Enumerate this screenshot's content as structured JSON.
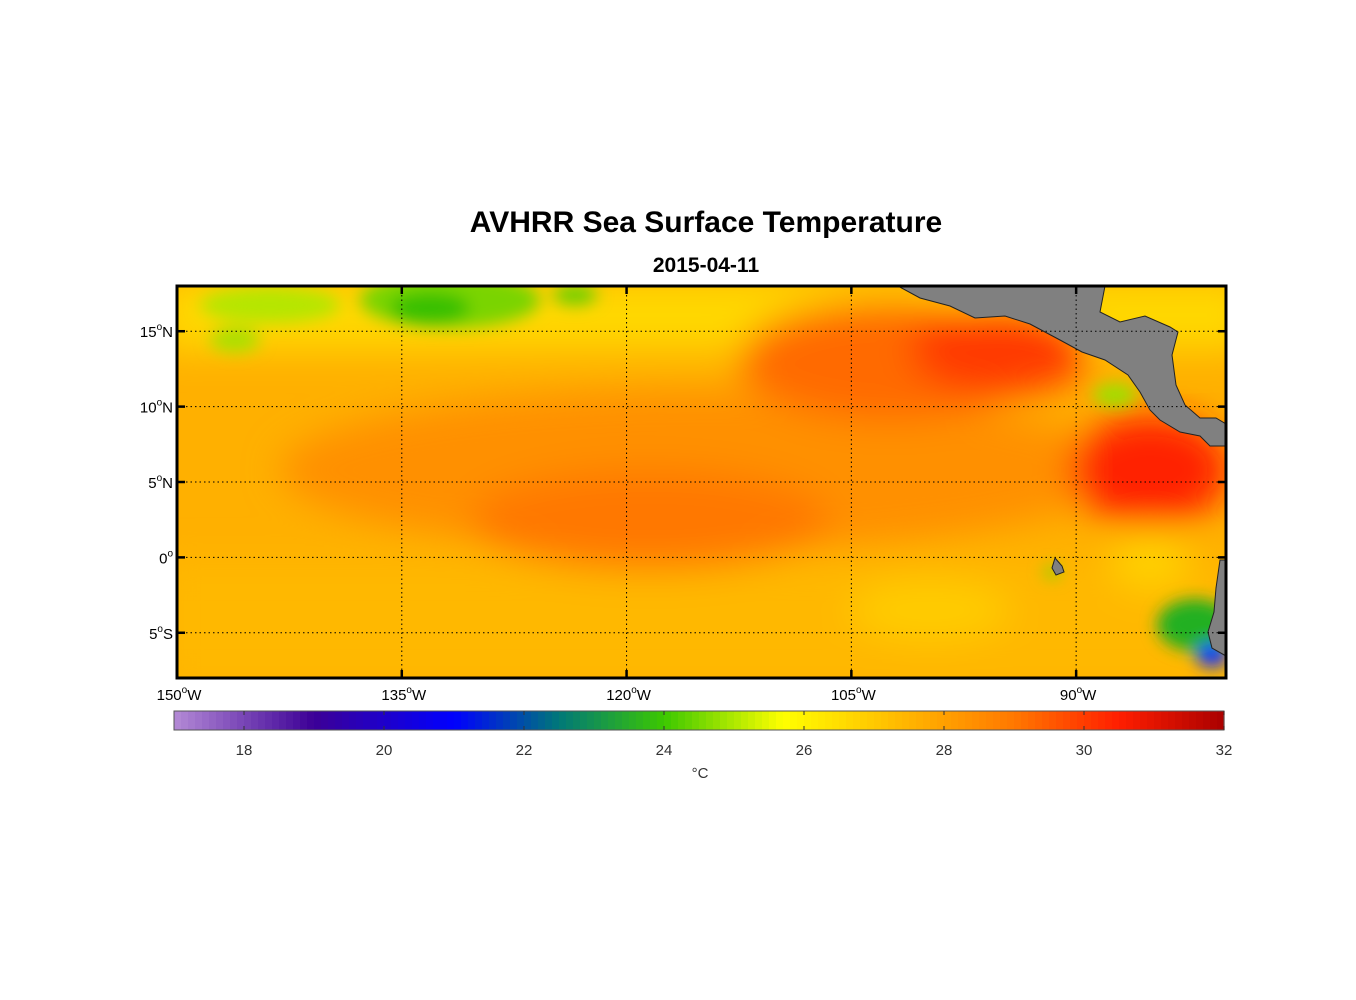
{
  "figure": {
    "title": "AVHRR Sea Surface Temperature",
    "date": "2015-04-11"
  },
  "map": {
    "lon_range": [
      -150,
      -80
    ],
    "lat_range": [
      -8,
      18
    ],
    "lat_labels": [
      {
        "lat": 15,
        "deg": "15",
        "hemi": "N"
      },
      {
        "lat": 10,
        "deg": "10",
        "hemi": "N"
      },
      {
        "lat": 5,
        "deg": "5",
        "hemi": "N"
      },
      {
        "lat": 0,
        "deg": "0",
        "hemi": ""
      },
      {
        "lat": -5,
        "deg": "5",
        "hemi": "S"
      }
    ],
    "lon_labels": [
      {
        "lon": -150,
        "deg": "150",
        "hemi": "W"
      },
      {
        "lon": -135,
        "deg": "135",
        "hemi": "W"
      },
      {
        "lon": -120,
        "deg": "120",
        "hemi": "W"
      },
      {
        "lon": -105,
        "deg": "105",
        "hemi": "W"
      },
      {
        "lon": -90,
        "deg": "90",
        "hemi": "W"
      }
    ],
    "land_color": "#808080",
    "grid": "dotted"
  },
  "colorbar": {
    "min": 17,
    "max": 32,
    "ticks": [
      18,
      20,
      22,
      24,
      26,
      28,
      30,
      32
    ],
    "units": "°C",
    "stops": [
      {
        "v": 17,
        "c": "#b48ad6"
      },
      {
        "v": 19,
        "c": "#3c0096"
      },
      {
        "v": 21,
        "c": "#0000ff"
      },
      {
        "v": 22.5,
        "c": "#007878"
      },
      {
        "v": 24,
        "c": "#3cc800"
      },
      {
        "v": 25.7,
        "c": "#ffff00"
      },
      {
        "v": 27.5,
        "c": "#ffb400"
      },
      {
        "v": 29,
        "c": "#ff7800"
      },
      {
        "v": 30.5,
        "c": "#ff1e00"
      },
      {
        "v": 32,
        "c": "#aa0000"
      }
    ]
  },
  "colors": {
    "frame": "#000000",
    "land": "#808080"
  }
}
